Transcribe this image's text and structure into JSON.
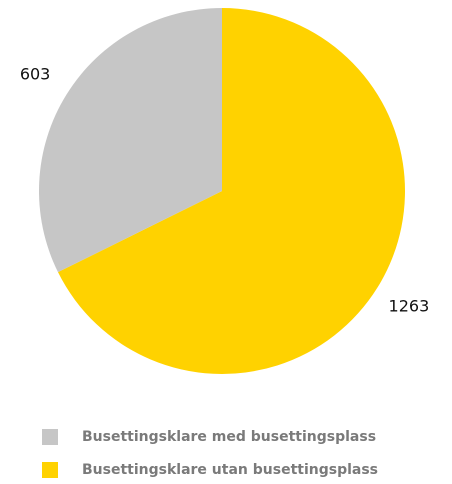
{
  "chart_data": {
    "type": "pie",
    "categories": [
      "Busettingsklare med busettingsplass",
      "Busettingsklare utan busettingsplass"
    ],
    "values": [
      603,
      1263
    ],
    "colors": [
      "#c6c6c6",
      "#ffd200"
    ]
  }
}
